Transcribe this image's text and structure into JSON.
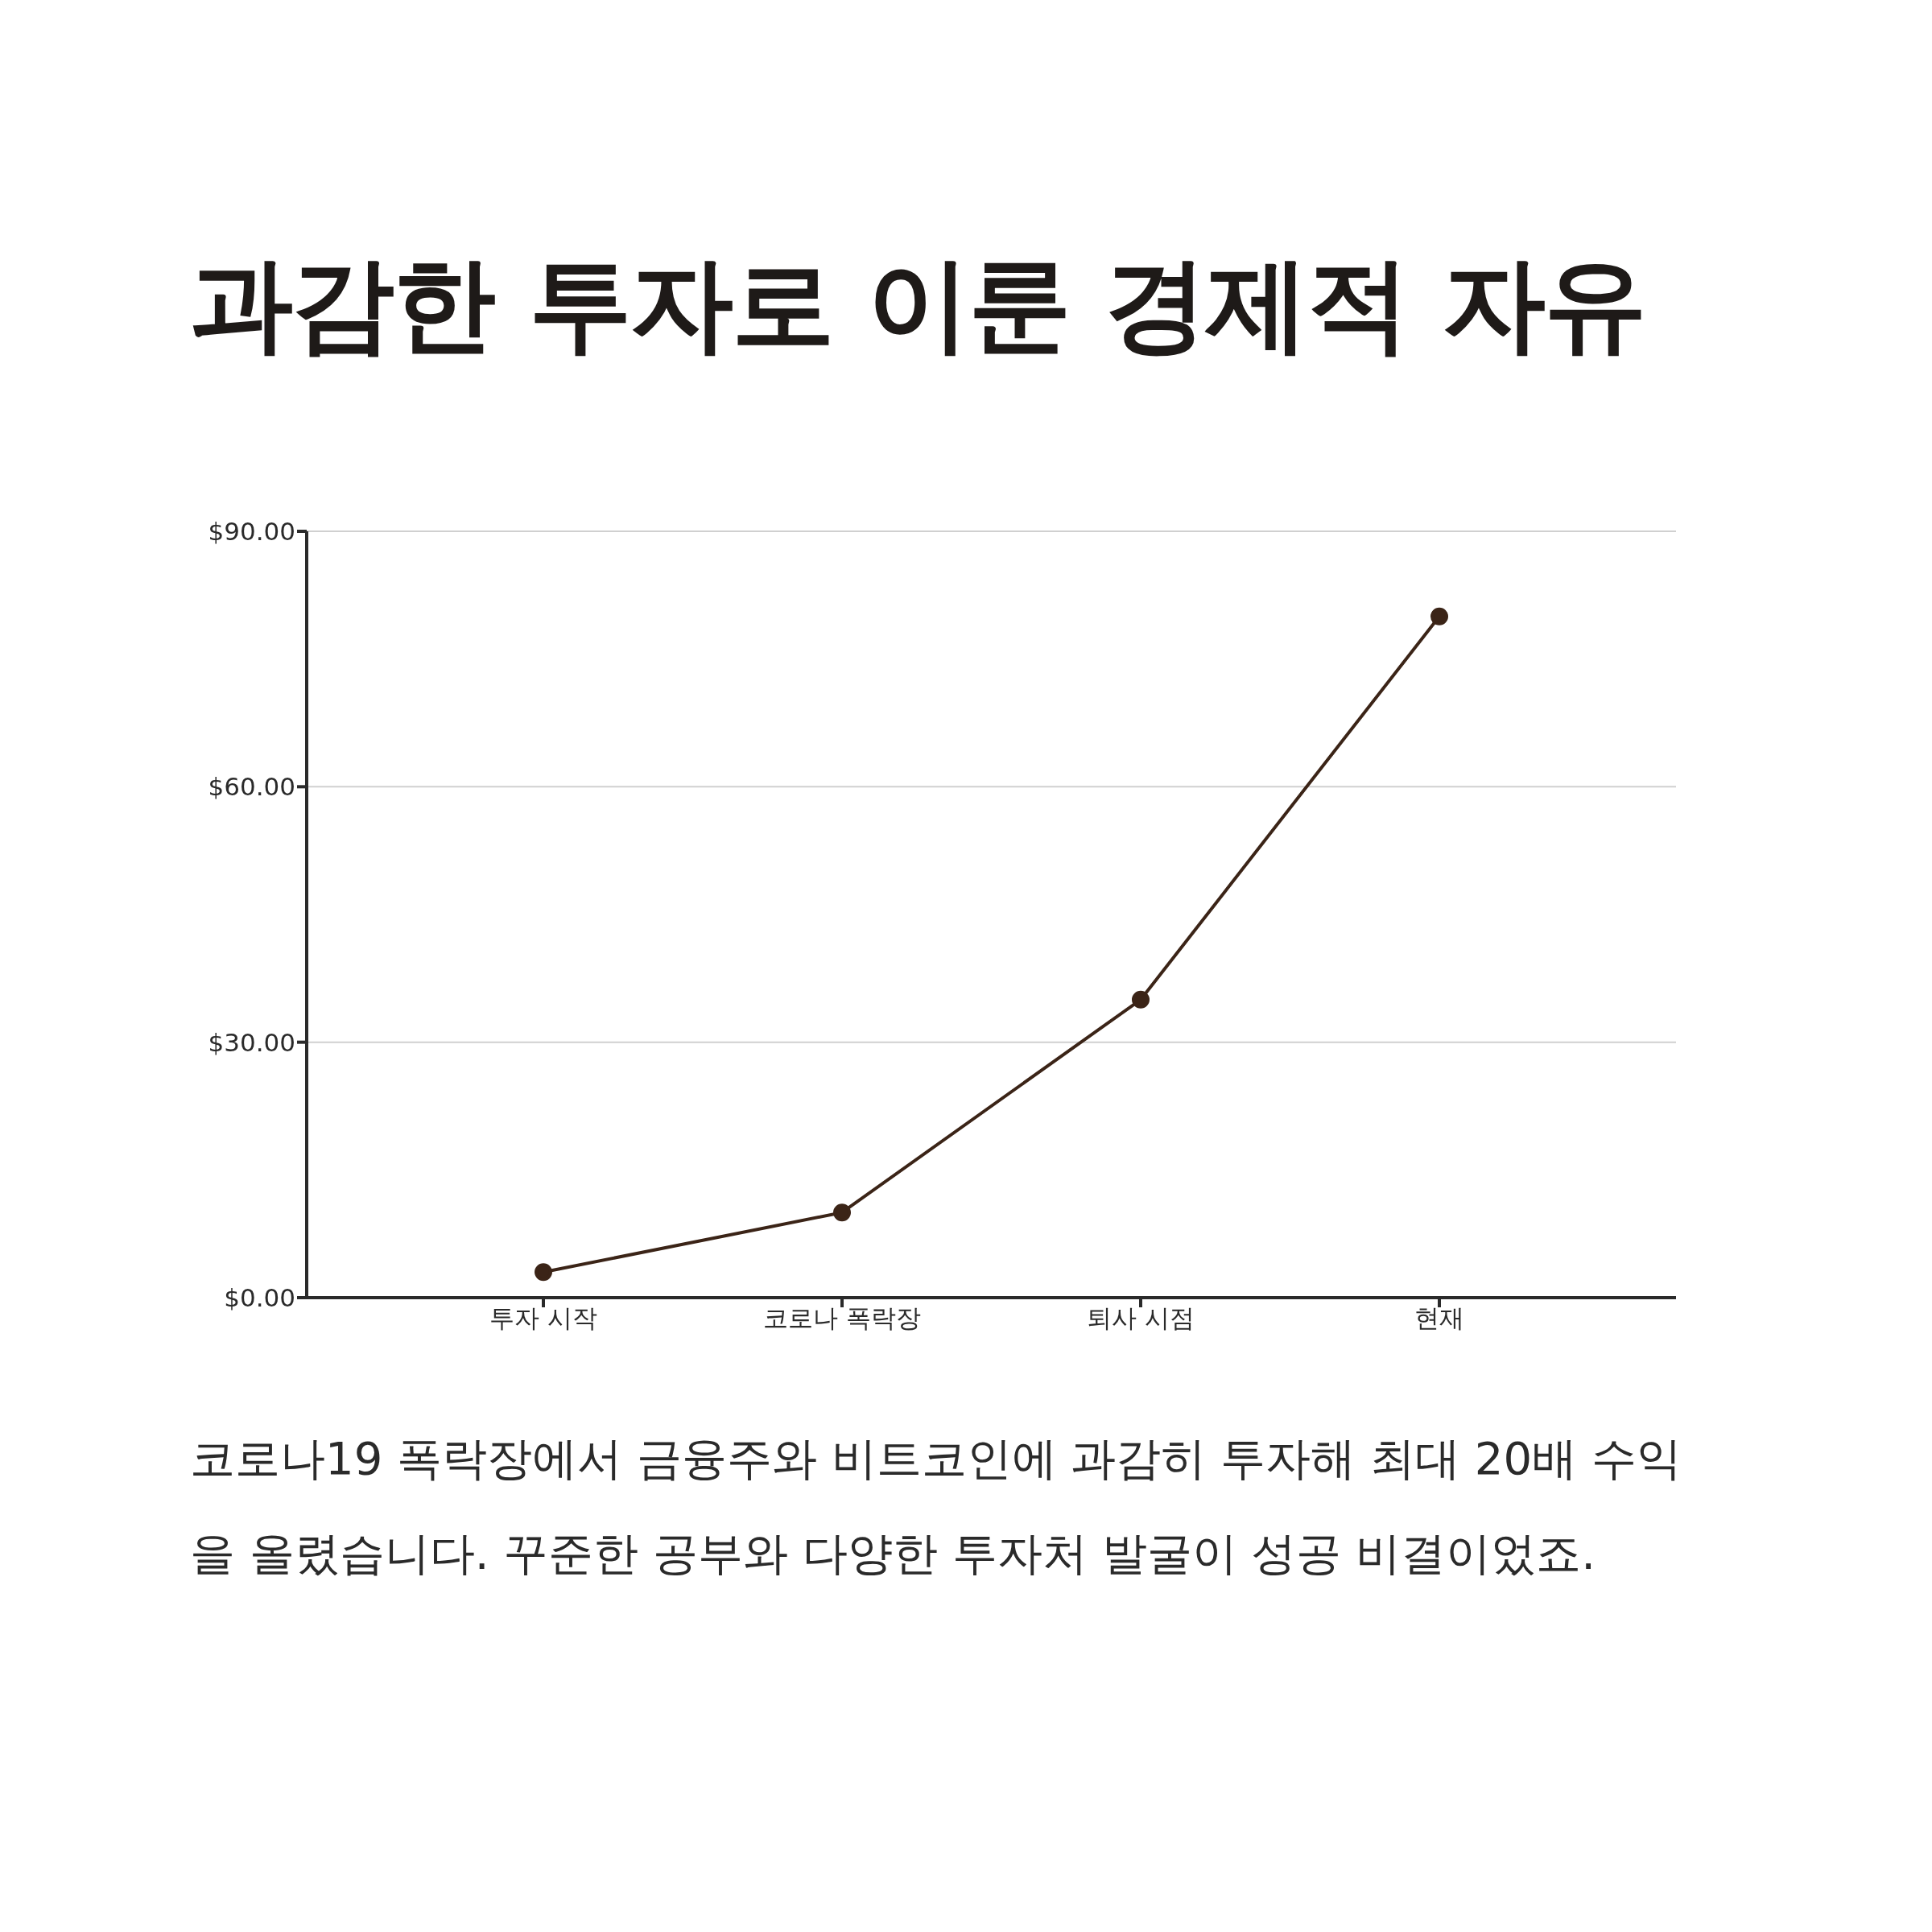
{
  "chart_data": {
    "type": "line",
    "title": "과감한 투자로 이룬 경제적 자유",
    "categories": [
      "투자 시작",
      "코로나 폭락장",
      "퇴사 시점",
      "현재"
    ],
    "series": [
      {
        "color": "#3b2417",
        "values": [
          3,
          10,
          35,
          80
        ]
      }
    ],
    "ylim": [
      0,
      90
    ],
    "yticks": [
      {
        "value": 0,
        "label": "$0.00"
      },
      {
        "value": 30,
        "label": "$30.00"
      },
      {
        "value": 60,
        "label": "$60.00"
      },
      {
        "value": 90,
        "label": "$90.00"
      }
    ],
    "grid": "y",
    "marker": "circle",
    "line_style": "solid",
    "annotations": [
      "코로나19 폭락장에서 금융주와 비트코인에 과감히 투자해 최대 20배 수익을 올렸습니다. 꾸준한 공부와 다양한 투자처 발굴이 성공 비결이었죠."
    ]
  }
}
